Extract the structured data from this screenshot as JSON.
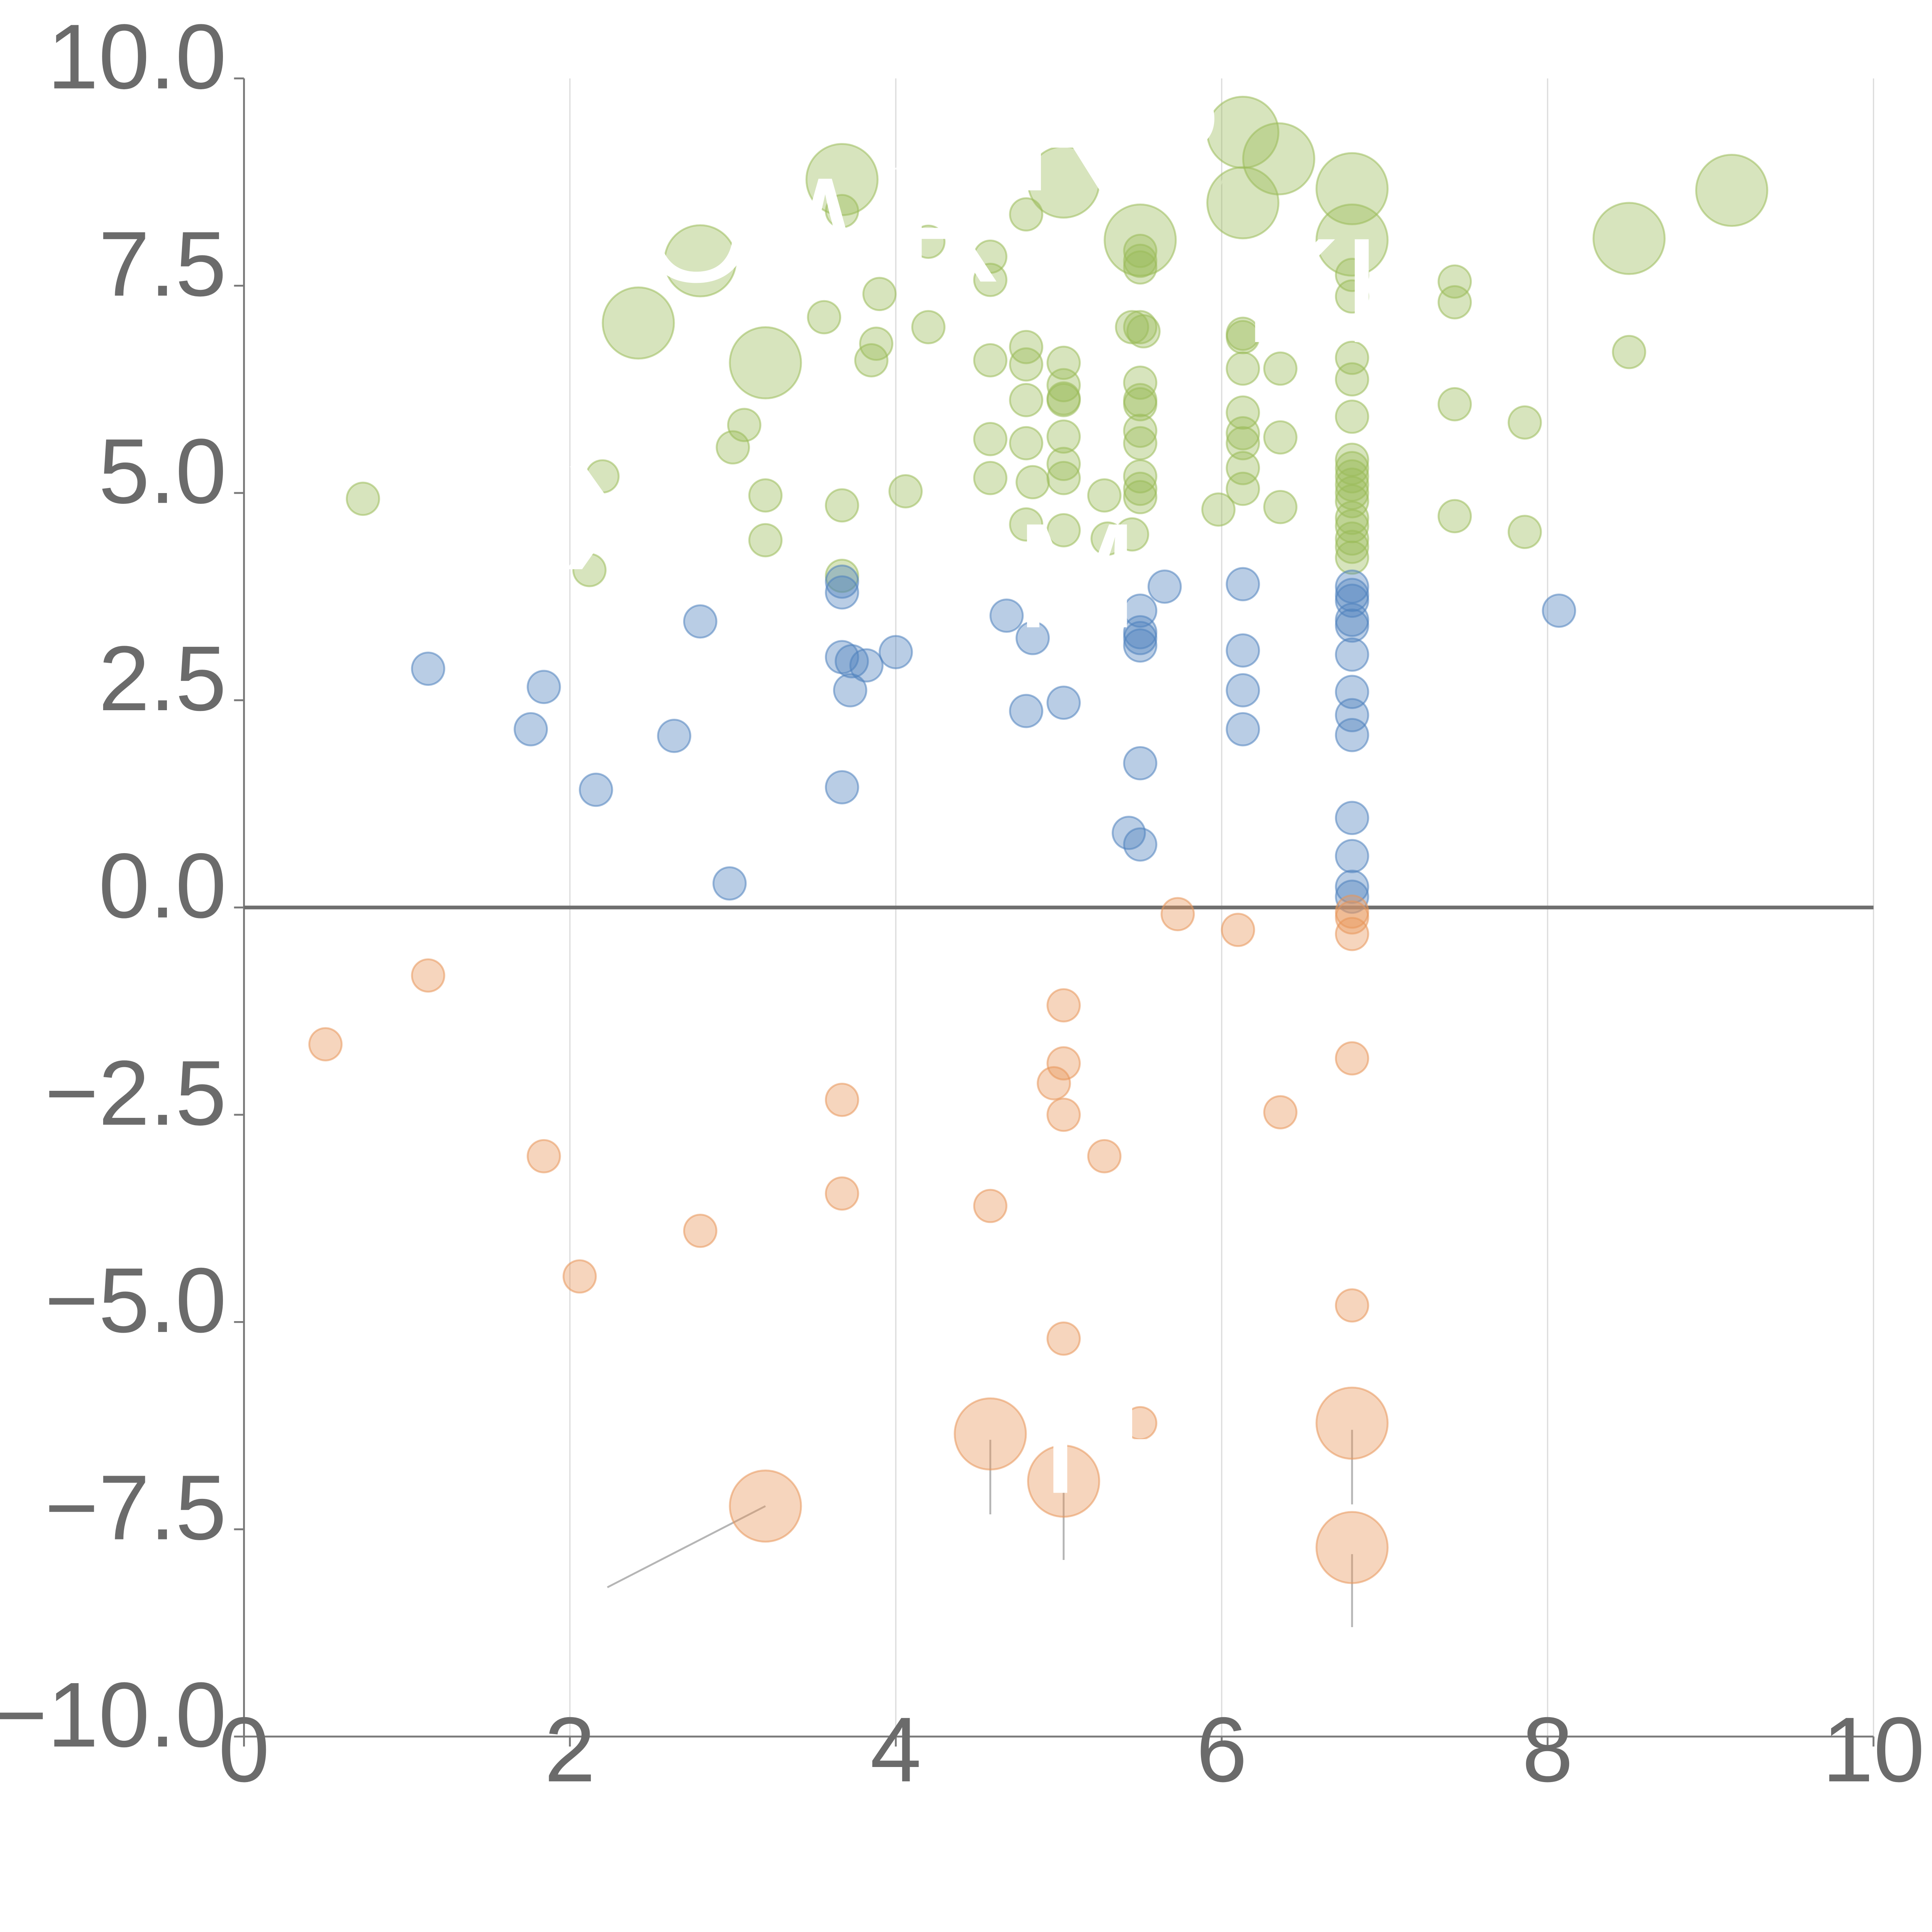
{
  "chart_data": {
    "type": "scatter",
    "title": "",
    "xlabel": "",
    "ylabel": "",
    "xlim": [
      0,
      10
    ],
    "ylim": [
      -10,
      10
    ],
    "x_ticks": [
      0,
      2,
      4,
      6,
      8,
      10
    ],
    "x_tick_labels": [
      "0",
      "2",
      "4",
      "6",
      "8",
      "10"
    ],
    "y_ticks": [
      10,
      7.5,
      5,
      2.5,
      0,
      -2.5,
      -5,
      -7.5,
      -10
    ],
    "y_tick_labels": [
      "10.0",
      "7.5",
      "5.0",
      "2.5",
      "0.0",
      "−2.5",
      "−5.0",
      "−7.5",
      "−10.0"
    ],
    "grid": "vertical",
    "zero_line": true,
    "series": [
      {
        "name": "green",
        "color": "#9bbb59",
        "points": [
          [
            0.73,
            4.93,
            1
          ],
          [
            2.2,
            5.2,
            1
          ],
          [
            2.12,
            4.07,
            1
          ],
          [
            3.0,
            5.55,
            1
          ],
          [
            3.07,
            5.82,
            1
          ],
          [
            3.2,
            4.97,
            1
          ],
          [
            3.2,
            4.43,
            1
          ],
          [
            3.56,
            7.12,
            1
          ],
          [
            3.67,
            8.4,
            1
          ],
          [
            3.67,
            4.85,
            1
          ],
          [
            3.67,
            4.0,
            1
          ],
          [
            3.85,
            6.6,
            1
          ],
          [
            3.88,
            6.8,
            1
          ],
          [
            3.9,
            7.4,
            1
          ],
          [
            4.06,
            5.02,
            1
          ],
          [
            4.2,
            7.0,
            1
          ],
          [
            4.2,
            8.03,
            1
          ],
          [
            4.58,
            7.85,
            1
          ],
          [
            4.58,
            7.57,
            1
          ],
          [
            4.58,
            6.6,
            1
          ],
          [
            4.58,
            5.65,
            1
          ],
          [
            4.58,
            5.18,
            1
          ],
          [
            4.8,
            8.36,
            1
          ],
          [
            4.8,
            6.76,
            1
          ],
          [
            4.8,
            6.55,
            1
          ],
          [
            4.8,
            6.12,
            1
          ],
          [
            4.8,
            5.6,
            1
          ],
          [
            4.8,
            4.62,
            1
          ],
          [
            4.84,
            5.13,
            1
          ],
          [
            5.03,
            6.57,
            1
          ],
          [
            5.03,
            6.3,
            1
          ],
          [
            5.03,
            6.14,
            1
          ],
          [
            5.03,
            6.12,
            1
          ],
          [
            5.03,
            5.68,
            1
          ],
          [
            5.03,
            5.35,
            1
          ],
          [
            5.03,
            5.18,
            1
          ],
          [
            5.03,
            4.55,
            1
          ],
          [
            5.28,
            4.97,
            1
          ],
          [
            5.3,
            4.45,
            1
          ],
          [
            5.45,
            7.0,
            1
          ],
          [
            5.45,
            4.5,
            1
          ],
          [
            5.5,
            7.92,
            1
          ],
          [
            5.5,
            7.8,
            1
          ],
          [
            5.5,
            7.72,
            1
          ],
          [
            5.5,
            7.0,
            1
          ],
          [
            5.52,
            6.95,
            1
          ],
          [
            5.5,
            6.33,
            1
          ],
          [
            5.5,
            6.12,
            1
          ],
          [
            5.5,
            6.07,
            1
          ],
          [
            5.5,
            5.75,
            1
          ],
          [
            5.5,
            5.6,
            1
          ],
          [
            5.5,
            5.2,
            1
          ],
          [
            5.5,
            5.05,
            1
          ],
          [
            5.5,
            4.95,
            1
          ],
          [
            5.98,
            4.8,
            1
          ],
          [
            6.13,
            6.92,
            1
          ],
          [
            6.13,
            6.88,
            1
          ],
          [
            6.13,
            6.5,
            1
          ],
          [
            6.13,
            5.97,
            1
          ],
          [
            6.13,
            5.72,
            1
          ],
          [
            6.13,
            5.6,
            1
          ],
          [
            6.13,
            5.3,
            1
          ],
          [
            6.13,
            5.05,
            1
          ],
          [
            6.36,
            6.5,
            1
          ],
          [
            6.36,
            5.67,
            1
          ],
          [
            6.36,
            4.83,
            1
          ],
          [
            6.8,
            7.63,
            1
          ],
          [
            6.8,
            7.37,
            1
          ],
          [
            6.8,
            6.63,
            1
          ],
          [
            6.8,
            6.37,
            1
          ],
          [
            6.8,
            5.92,
            1
          ],
          [
            6.8,
            5.4,
            1
          ],
          [
            6.8,
            5.3,
            1
          ],
          [
            6.8,
            5.2,
            1
          ],
          [
            6.8,
            5.1,
            1
          ],
          [
            6.8,
            5.0,
            1
          ],
          [
            6.8,
            4.9,
            1
          ],
          [
            6.8,
            4.7,
            1
          ],
          [
            6.8,
            4.6,
            1
          ],
          [
            6.8,
            4.45,
            1
          ],
          [
            6.8,
            4.35,
            1
          ],
          [
            6.8,
            4.22,
            1
          ],
          [
            7.43,
            7.55,
            1
          ],
          [
            7.43,
            7.3,
            1
          ],
          [
            7.43,
            6.07,
            1
          ],
          [
            7.43,
            4.72,
            1
          ],
          [
            7.86,
            5.85,
            1
          ],
          [
            7.86,
            4.53,
            1
          ],
          [
            8.5,
            6.7,
            1
          ],
          [
            2.8,
            7.8,
            2.2
          ],
          [
            2.42,
            7.05,
            2.2
          ],
          [
            3.2,
            6.57,
            2.2
          ],
          [
            3.67,
            8.78,
            2.2
          ],
          [
            5.03,
            8.75,
            2.2
          ],
          [
            5.5,
            8.05,
            2.2
          ],
          [
            6.13,
            9.35,
            2.2
          ],
          [
            6.35,
            9.03,
            2.2
          ],
          [
            6.13,
            8.5,
            2.2
          ],
          [
            6.8,
            8.67,
            2.2
          ],
          [
            6.8,
            8.05,
            2.2
          ],
          [
            8.5,
            8.07,
            2.2
          ],
          [
            9.13,
            8.65,
            2.2
          ]
        ]
      },
      {
        "name": "blue",
        "color": "#4f81bd",
        "points": [
          [
            1.13,
            2.88,
            1
          ],
          [
            1.76,
            2.15,
            1
          ],
          [
            1.84,
            2.66,
            1
          ],
          [
            2.16,
            1.42,
            1
          ],
          [
            2.64,
            2.07,
            1
          ],
          [
            2.8,
            3.45,
            1
          ],
          [
            2.98,
            0.29,
            1
          ],
          [
            3.67,
            3.93,
            1
          ],
          [
            3.67,
            3.8,
            1
          ],
          [
            3.67,
            3.02,
            1
          ],
          [
            3.67,
            1.45,
            1
          ],
          [
            3.73,
            2.97,
            1
          ],
          [
            3.72,
            2.62,
            1
          ],
          [
            3.82,
            2.92,
            1
          ],
          [
            4.0,
            3.08,
            1
          ],
          [
            4.68,
            3.52,
            1
          ],
          [
            4.8,
            2.37,
            1
          ],
          [
            4.84,
            3.25,
            1
          ],
          [
            5.03,
            2.47,
            1
          ],
          [
            5.43,
            0.9,
            1
          ],
          [
            5.5,
            3.58,
            1
          ],
          [
            5.5,
            3.32,
            1
          ],
          [
            5.5,
            3.25,
            1
          ],
          [
            5.5,
            3.16,
            1
          ],
          [
            5.5,
            1.74,
            1
          ],
          [
            5.5,
            0.76,
            1
          ],
          [
            5.65,
            3.87,
            1
          ],
          [
            6.13,
            3.9,
            1
          ],
          [
            6.13,
            3.1,
            1
          ],
          [
            6.13,
            2.62,
            1
          ],
          [
            6.13,
            2.15,
            1
          ],
          [
            6.8,
            3.87,
            1
          ],
          [
            6.8,
            3.77,
            1
          ],
          [
            6.8,
            3.7,
            1
          ],
          [
            6.8,
            3.47,
            1
          ],
          [
            6.8,
            3.4,
            1
          ],
          [
            6.8,
            3.05,
            1
          ],
          [
            6.8,
            2.6,
            1
          ],
          [
            6.8,
            2.32,
            1
          ],
          [
            6.8,
            2.08,
            1
          ],
          [
            6.8,
            1.08,
            1
          ],
          [
            6.8,
            0.62,
            1
          ],
          [
            6.8,
            0.25,
            1
          ],
          [
            6.8,
            0.13,
            1
          ],
          [
            8.07,
            3.58,
            1
          ]
        ]
      },
      {
        "name": "orange",
        "color": "#e8965a",
        "points": [
          [
            0.5,
            -1.65,
            1
          ],
          [
            1.13,
            -0.82,
            1
          ],
          [
            1.84,
            -3.0,
            1
          ],
          [
            2.06,
            -4.45,
            1
          ],
          [
            2.8,
            -3.9,
            1
          ],
          [
            3.67,
            -2.32,
            1
          ],
          [
            3.67,
            -3.45,
            1
          ],
          [
            4.58,
            -3.6,
            1
          ],
          [
            4.97,
            -2.12,
            1
          ],
          [
            5.03,
            -1.18,
            1
          ],
          [
            5.03,
            -1.88,
            1
          ],
          [
            5.03,
            -2.5,
            1
          ],
          [
            5.28,
            -3.0,
            1
          ],
          [
            5.03,
            -5.2,
            1
          ],
          [
            5.5,
            -6.22,
            1
          ],
          [
            5.73,
            -0.08,
            1
          ],
          [
            6.1,
            -0.27,
            1
          ],
          [
            6.36,
            -2.47,
            1
          ],
          [
            6.8,
            -0.05,
            1
          ],
          [
            6.8,
            -0.12,
            1
          ],
          [
            6.8,
            -0.32,
            1
          ],
          [
            6.8,
            -1.82,
            1
          ],
          [
            6.8,
            -4.8,
            1
          ],
          [
            3.2,
            -7.22,
            2.2
          ],
          [
            4.58,
            -6.35,
            2.2
          ],
          [
            5.03,
            -6.92,
            2.2
          ],
          [
            6.8,
            -6.22,
            2.2
          ],
          [
            6.8,
            -7.72,
            2.2
          ]
        ]
      }
    ],
    "labels": [
      {
        "text": "OWR",
        "x": 2.42,
        "y": 7.55
      },
      {
        "text": "RP",
        "x": 4.73,
        "y": 8.65
      },
      {
        "text": "KL",
        "x": 6.13,
        "y": 6.82
      },
      {
        "text": "X",
        "x": 1.96,
        "y": 4.08
      },
      {
        "text": "M",
        "x": 4.73,
        "y": 3.38
      },
      {
        "text": "TR",
        "x": 4.73,
        "y": -7.06
      },
      {
        "text": "O",
        "x": 6.85,
        "y": 9.07
      }
    ],
    "leaders": [
      [
        [
          3.2,
          -7.22
        ],
        [
          2.23,
          -8.2
        ]
      ],
      [
        [
          4.58,
          -6.42
        ],
        [
          4.58,
          -7.32
        ]
      ],
      [
        [
          5.03,
          -7.0
        ],
        [
          5.03,
          -7.87
        ]
      ],
      [
        [
          6.8,
          -6.3
        ],
        [
          6.8,
          -7.2
        ]
      ],
      [
        [
          6.8,
          -7.8
        ],
        [
          6.8,
          -8.68
        ]
      ],
      [
        [
          3.67,
          8.85
        ],
        [
          4.2,
          8.95
        ]
      ],
      [
        [
          2.8,
          7.85
        ],
        [
          2.4,
          7.7
        ]
      ],
      [
        [
          3.2,
          6.5
        ],
        [
          2.95,
          5.9
        ]
      ],
      [
        [
          6.13,
          9.2
        ],
        [
          5.9,
          8.4
        ]
      ],
      [
        [
          6.35,
          9.0
        ],
        [
          6.6,
          9.15
        ]
      ],
      [
        [
          6.8,
          8.6
        ],
        [
          7.1,
          8.55
        ]
      ],
      [
        [
          5.5,
          8.1
        ],
        [
          5.9,
          8.3
        ]
      ],
      [
        [
          8.5,
          8.0
        ],
        [
          8.55,
          7.65
        ]
      ],
      [
        [
          9.13,
          8.6
        ],
        [
          9.1,
          8.9
        ]
      ]
    ]
  }
}
